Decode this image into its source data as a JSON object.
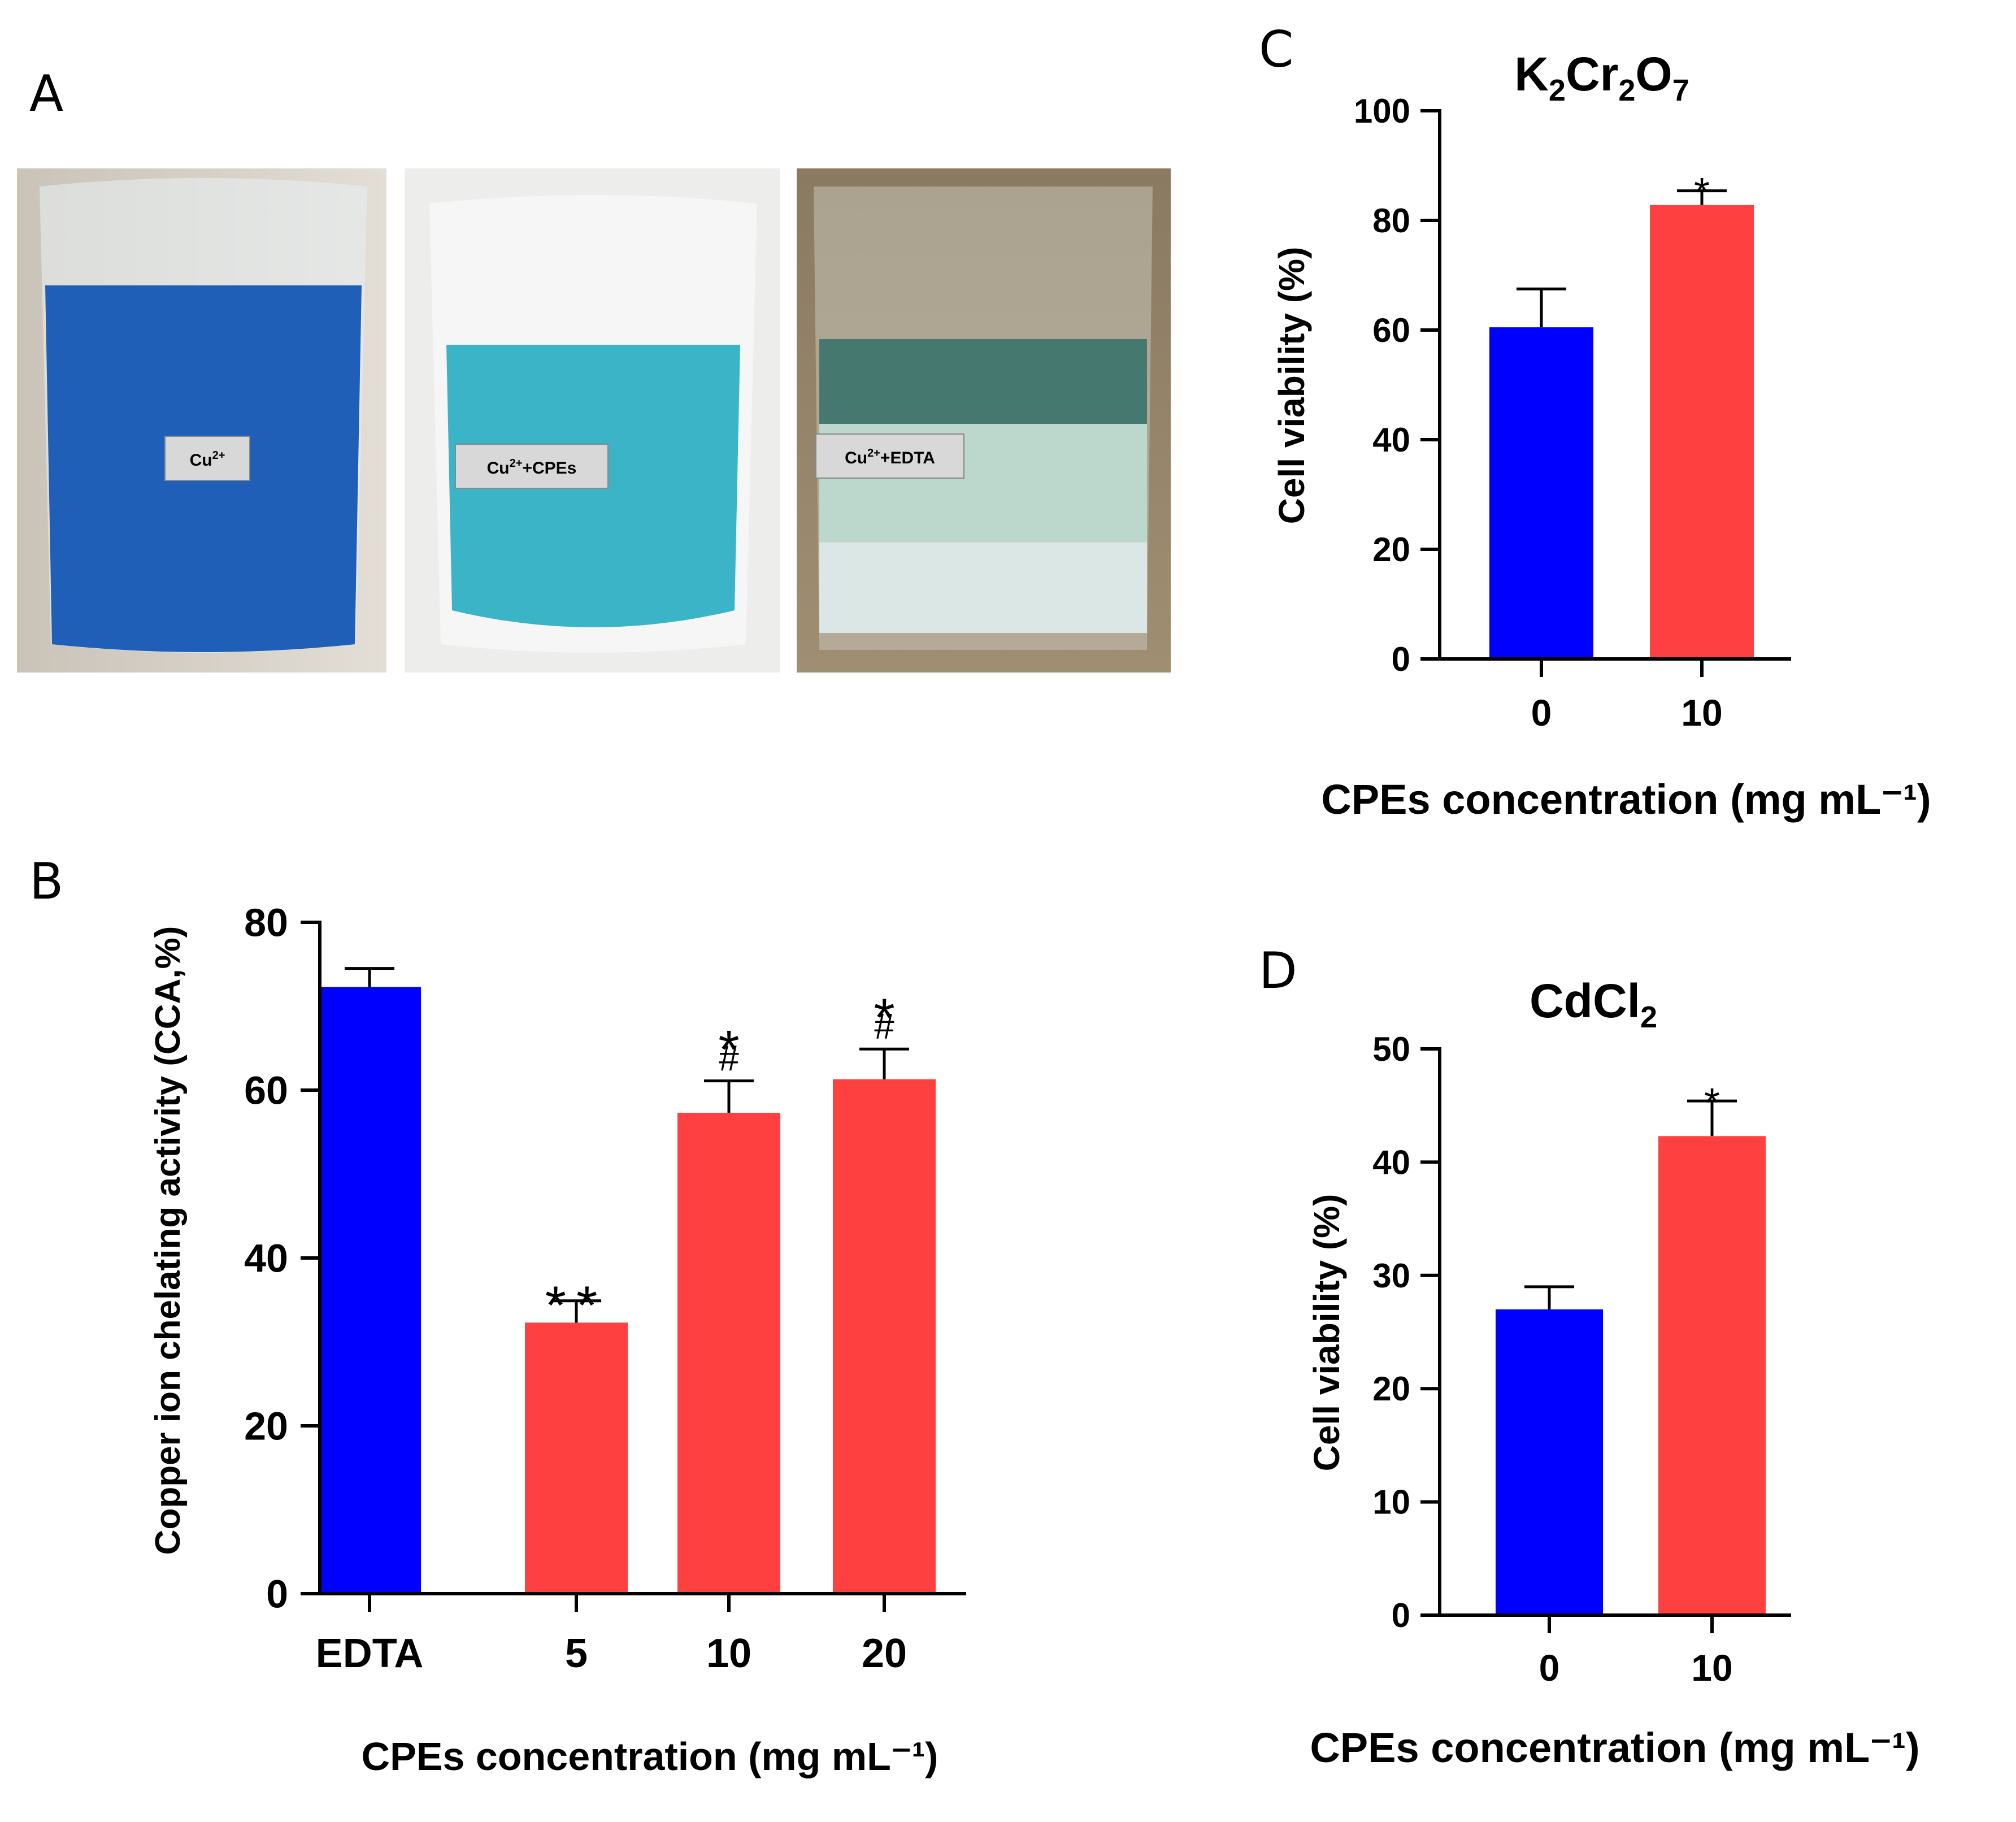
{
  "panel_letters": {
    "a": "A",
    "b": "B",
    "c": "C",
    "d": "D"
  },
  "photos": {
    "labels": [
      "Cu",
      "Cu",
      "Cu"
    ],
    "superscripts": [
      "2+",
      "2+",
      "2+"
    ],
    "suffixes": [
      "",
      "+CPEs",
      "+EDTA"
    ],
    "colors": [
      "#1f5fb8",
      "#3cb4c8",
      "#bcd8cc"
    ]
  },
  "colors": {
    "control": "#0000ff",
    "treatment": "#ff4040"
  },
  "chart_data": [
    {
      "panel": "B",
      "type": "bar",
      "categories": [
        "EDTA",
        "5",
        "10",
        "20"
      ],
      "values": [
        72.3,
        32.3,
        57.3,
        61.3
      ],
      "errors": [
        2.2,
        2.6,
        3.8,
        3.6
      ],
      "bar_colors": [
        "#0000ff",
        "#ff4040",
        "#ff4040",
        "#ff4040"
      ],
      "significance_top": [
        "",
        "**",
        "*",
        "*"
      ],
      "significance_hash": [
        "",
        "",
        "#",
        "#"
      ],
      "ylabel": "Copper ion chelating activity (CCA,%)",
      "xlabel": "CPEs concentration (mg mL⁻¹)",
      "ylim": [
        0,
        80
      ],
      "yticks": [
        0,
        20,
        40,
        60,
        80
      ],
      "title": ""
    },
    {
      "panel": "C",
      "type": "bar",
      "title_parts": [
        "K",
        "2",
        "Cr",
        "2",
        "O",
        "7"
      ],
      "categories": [
        "0",
        "10"
      ],
      "values": [
        60.5,
        82.8
      ],
      "errors": [
        7.0,
        2.6
      ],
      "bar_colors": [
        "#0000ff",
        "#ff4040"
      ],
      "significance_top": [
        "",
        "*"
      ],
      "ylabel": "Cell viability (%)",
      "xlabel": "CPEs concentration (mg mL⁻¹)",
      "ylim": [
        0,
        100
      ],
      "yticks": [
        0,
        20,
        40,
        60,
        80,
        100
      ]
    },
    {
      "panel": "D",
      "type": "bar",
      "title_parts": [
        "CdCl",
        "2"
      ],
      "categories": [
        "0",
        "10"
      ],
      "values": [
        27.0,
        42.3
      ],
      "errors": [
        2.0,
        3.1
      ],
      "bar_colors": [
        "#0000ff",
        "#ff4040"
      ],
      "significance_top": [
        "",
        "*"
      ],
      "ylabel": "Cell viability (%)",
      "xlabel": "CPEs concentration (mg mL⁻¹)",
      "ylim": [
        0,
        50
      ],
      "yticks": [
        0,
        10,
        20,
        30,
        40,
        50
      ]
    }
  ]
}
